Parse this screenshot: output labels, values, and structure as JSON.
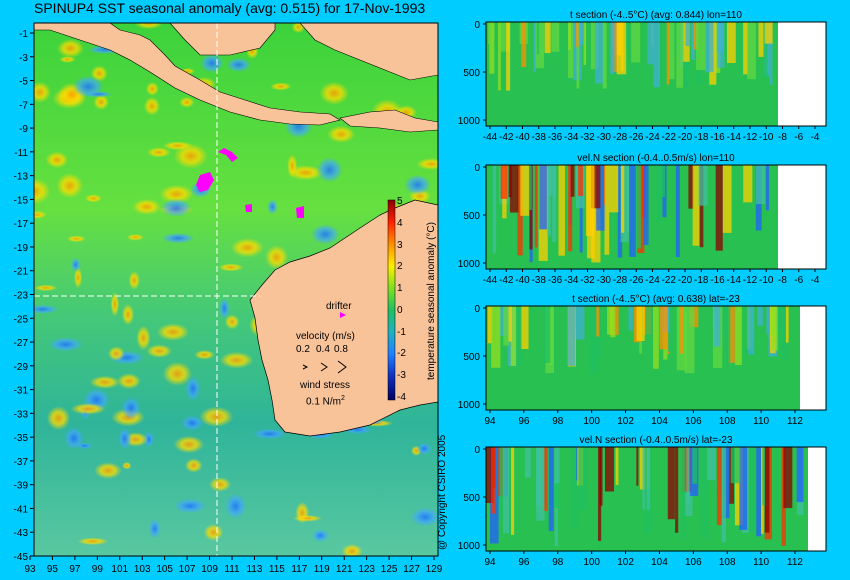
{
  "main_title": "SPINUP4 SST seasonal anomaly (avg: 0.515) for 17-Nov-1993",
  "map": {
    "x_ticks": [
      "93",
      "95",
      "97",
      "99",
      "101",
      "103",
      "105",
      "107",
      "109",
      "111",
      "113",
      "115",
      "117",
      "119",
      "121",
      "123",
      "125",
      "127",
      "129"
    ],
    "y_ticks": [
      "-1",
      "-3",
      "-5",
      "-7",
      "-9",
      "-11",
      "-13",
      "-15",
      "-17",
      "-19",
      "-21",
      "-23",
      "-25",
      "-27",
      "-29",
      "-31",
      "-33",
      "-35",
      "-37",
      "-39",
      "-41",
      "-43",
      "-45"
    ],
    "drifter_label": "drifter",
    "velocity_label": "velocity (m/s)",
    "velocity_scale": [
      "0.2",
      "0.4",
      "0.8"
    ],
    "wind_label": "wind stress",
    "wind_value": "0.1 N/m",
    "wind_exp": "2",
    "colors": {
      "land": "#f9c39a",
      "ocean_warm": "#ffcc00",
      "ocean_cool": "#1e90ff",
      "marker": "#ff00ff",
      "section_line": "#ffffff"
    }
  },
  "colorbar": {
    "label": "temperature seasonal anomaly (°C)",
    "ticks": [
      "5",
      "4",
      "3",
      "2",
      "1",
      "0",
      "-1",
      "-2",
      "-3",
      "-4"
    ]
  },
  "copyright": "@ Copyright CSIRO 2005",
  "panels": [
    {
      "title": "t section (-4..5°C) (avg: 0.844) lon=110",
      "y_ticks": [
        "0",
        "500",
        "1000"
      ],
      "x_ticks": [
        "-44",
        "-42",
        "-40",
        "-38",
        "-36",
        "-34",
        "-32",
        "-30",
        "-28",
        "-26",
        "-24",
        "-22",
        "-20",
        "-18",
        "-16",
        "-14",
        "-12",
        "-10",
        "-8",
        "-6",
        "-4"
      ]
    },
    {
      "title": "vel.N section (-0.4..0.5m/s) lon=110",
      "y_ticks": [
        "0",
        "500",
        "1000"
      ],
      "x_ticks": [
        "-44",
        "-42",
        "-40",
        "-38",
        "-36",
        "-34",
        "-32",
        "-30",
        "-28",
        "-26",
        "-24",
        "-22",
        "-20",
        "-18",
        "-16",
        "-14",
        "-12",
        "-10",
        "-8",
        "-6",
        "-4"
      ]
    },
    {
      "title": "t section (-4..5°C) (avg: 0.638) lat=-23",
      "y_ticks": [
        "0",
        "500",
        "1000"
      ],
      "x_ticks": [
        "94",
        "96",
        "98",
        "100",
        "102",
        "104",
        "106",
        "108",
        "110",
        "112"
      ]
    },
    {
      "title": "vel.N section (-0.4..0.5m/s) lat=-23",
      "y_ticks": [
        "0",
        "500",
        "1000"
      ],
      "x_ticks": [
        "94",
        "96",
        "98",
        "100",
        "102",
        "104",
        "106",
        "108",
        "110",
        "112"
      ]
    }
  ],
  "chart_data": [
    {
      "type": "heatmap",
      "title": "SPINUP4 SST seasonal anomaly (avg: 0.515) for 17-Nov-1993",
      "xlabel": "",
      "ylabel": "",
      "xlim": [
        93,
        130
      ],
      "ylim": [
        -45,
        1
      ],
      "colorbar_range": [
        -4,
        5
      ],
      "colorbar_label": "temperature seasonal anomaly (°C)"
    },
    {
      "type": "heatmap",
      "title": "t section (-4..5°C) (avg: 0.844) lon=110",
      "xlim": [
        -45,
        -2
      ],
      "ylim": [
        1050,
        0
      ]
    },
    {
      "type": "heatmap",
      "title": "vel.N section (-0.4..0.5m/s) lon=110",
      "xlim": [
        -45,
        -2
      ],
      "ylim": [
        1050,
        0
      ]
    },
    {
      "type": "heatmap",
      "title": "t section (-4..5°C) (avg: 0.638) lat=-23",
      "xlim": [
        93,
        114
      ],
      "ylim": [
        1050,
        0
      ]
    },
    {
      "type": "heatmap",
      "title": "vel.N section (-0.4..0.5m/s) lat=-23",
      "xlim": [
        93,
        114
      ],
      "ylim": [
        1050,
        0
      ]
    }
  ]
}
